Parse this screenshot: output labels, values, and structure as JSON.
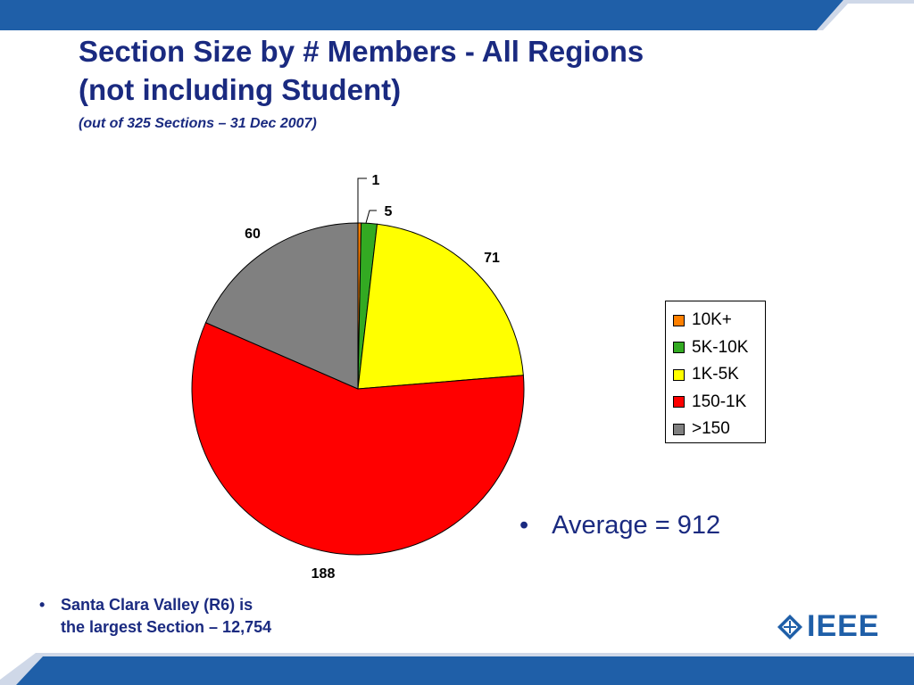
{
  "slide": {
    "title_line1": "Section Size by # Members - All Regions",
    "title_line2": "(not including Student)",
    "subtitle": "(out of 325 Sections – 31 Dec 2007)",
    "bullet_average": "Average = 912",
    "note_line1": "Santa Clara Valley (R6) is",
    "note_line2": "the largest Section – 12,754",
    "logo_text": "IEEE",
    "bullet_char": "•"
  },
  "colors": {
    "title": "#1a2a80",
    "band": "#1f5fa8",
    "logo": "#1f5fa8"
  },
  "chart_data": {
    "type": "pie",
    "categories": [
      "10K+",
      "5K-10K",
      "1K-5K",
      "150-1K",
      ">150"
    ],
    "values": [
      1,
      5,
      71,
      188,
      60
    ],
    "colors": [
      "#ff8000",
      "#33aa22",
      "#ffff00",
      "#ff0000",
      "#808080"
    ],
    "data_labels": [
      "1",
      "5",
      "71",
      "188",
      "60"
    ],
    "legend_position": "right",
    "start_angle": "12 o'clock, clockwise"
  }
}
